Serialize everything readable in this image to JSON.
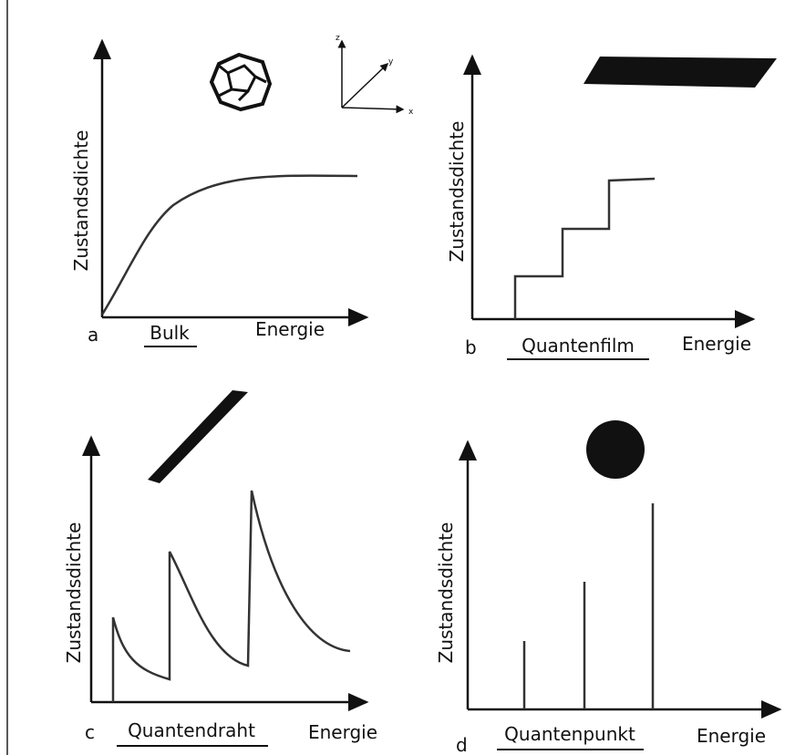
{
  "panels": [
    {
      "letter": "a",
      "label": "Bulk",
      "y_axis": "Zustandsdichte",
      "x_axis": "Energie",
      "coords": [
        "z",
        "y",
        "x"
      ]
    },
    {
      "letter": "b",
      "label": "Quantenfilm",
      "y_axis": "Zustandsdichte",
      "x_axis": "Energie"
    },
    {
      "letter": "c",
      "label": "Quantendraht",
      "y_axis": "Zustandsdichte",
      "x_axis": "Energie"
    },
    {
      "letter": "d",
      "label": "Quantenpunkt",
      "y_axis": "Zustandsdichte",
      "x_axis": "Energie"
    }
  ]
}
